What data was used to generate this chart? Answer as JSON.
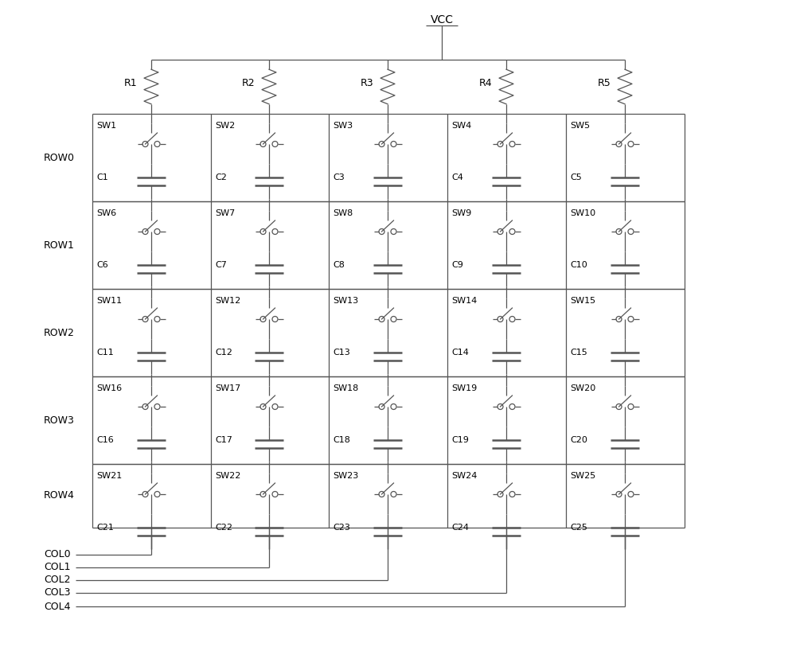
{
  "fig_width": 10.0,
  "fig_height": 8.13,
  "dpi": 100,
  "bg_color": "#ffffff",
  "line_color": "#555555",
  "text_color": "#000000",
  "title": "VCC",
  "num_cols": 5,
  "num_rows": 5,
  "col_labels": [
    "COL0",
    "COL1",
    "COL2",
    "COL3",
    "COL4"
  ],
  "row_labels": [
    "ROW0",
    "ROW1",
    "ROW2",
    "ROW3",
    "ROW4"
  ],
  "resistor_labels": [
    "R1",
    "R2",
    "R3",
    "R4",
    "R5"
  ],
  "sw_labels": [
    "SW1",
    "SW2",
    "SW3",
    "SW4",
    "SW5",
    "SW6",
    "SW7",
    "SW8",
    "SW9",
    "SW10",
    "SW11",
    "SW12",
    "SW13",
    "SW14",
    "SW15",
    "SW16",
    "SW17",
    "SW18",
    "SW19",
    "SW20",
    "SW21",
    "SW22",
    "SW23",
    "SW24",
    "SW25"
  ],
  "cap_labels": [
    "C1",
    "C2",
    "C3",
    "C4",
    "C5",
    "C6",
    "C7",
    "C8",
    "C9",
    "C10",
    "C11",
    "C12",
    "C13",
    "C14",
    "C15",
    "C16",
    "C17",
    "C18",
    "C19",
    "C20",
    "C21",
    "C22",
    "C23",
    "C24",
    "C25"
  ]
}
